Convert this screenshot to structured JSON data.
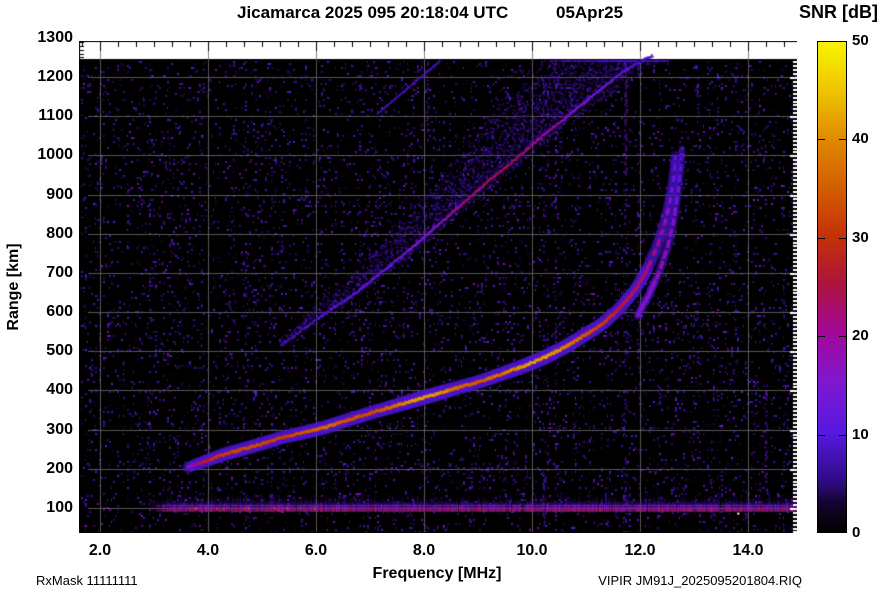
{
  "header": {
    "title": "Jicamarca 2025 095 20:18:04 UTC",
    "date": "05Apr25"
  },
  "footer": {
    "rx_mask": "RxMask 11111111",
    "file_id": "VIPIR  JM91J_2025095201804.RIQ"
  },
  "chart_data": {
    "type": "heatmap",
    "title": "Jicamarca 2025 095 20:18:04 UTC 05Apr25",
    "xlabel": "Frequency [MHz]",
    "ylabel": "Range [km]",
    "colorbar_label": "SNR [dB]",
    "xlim": [
      1.611,
      14.907
    ],
    "ylim": [
      36,
      1292
    ],
    "data_top_km": 1246,
    "snr_range_db": [
      0,
      50
    ],
    "grid": true,
    "grid_color": "#6b6b6b",
    "background_color": "#000000",
    "x_ticks": [
      {
        "v": 2.0,
        "label": "2.0"
      },
      {
        "v": 4.0,
        "label": "4.0"
      },
      {
        "v": 6.0,
        "label": "6.0"
      },
      {
        "v": 8.0,
        "label": "8.0"
      },
      {
        "v": 10.0,
        "label": "10.0"
      },
      {
        "v": 12.0,
        "label": "12.0"
      },
      {
        "v": 14.0,
        "label": "14.0"
      }
    ],
    "y_ticks": [
      {
        "v": 100,
        "label": "100"
      },
      {
        "v": 200,
        "label": "200"
      },
      {
        "v": 300,
        "label": "300"
      },
      {
        "v": 400,
        "label": "400"
      },
      {
        "v": 500,
        "label": "500"
      },
      {
        "v": 600,
        "label": "600"
      },
      {
        "v": 700,
        "label": "700"
      },
      {
        "v": 800,
        "label": "800"
      },
      {
        "v": 900,
        "label": "900"
      },
      {
        "v": 1000,
        "label": "1000"
      },
      {
        "v": 1100,
        "label": "1100"
      },
      {
        "v": 1200,
        "label": "1200"
      },
      {
        "v": 1300,
        "label": "1300"
      }
    ],
    "colorbar_ticks": [
      {
        "v": 0,
        "label": "0"
      },
      {
        "v": 10,
        "label": "10"
      },
      {
        "v": 20,
        "label": "20"
      },
      {
        "v": 30,
        "label": "30"
      },
      {
        "v": 40,
        "label": "40"
      },
      {
        "v": 50,
        "label": "50"
      }
    ],
    "colormap": [
      [
        0.0,
        "#000000"
      ],
      [
        0.06,
        "#16032e"
      ],
      [
        0.1,
        "#2e0a80"
      ],
      [
        0.2,
        "#5518e0"
      ],
      [
        0.3,
        "#7c18d0"
      ],
      [
        0.4,
        "#a008a0"
      ],
      [
        0.5,
        "#ac1242"
      ],
      [
        0.6,
        "#c33008"
      ],
      [
        0.7,
        "#d25c00"
      ],
      [
        0.8,
        "#e08800"
      ],
      [
        0.9,
        "#efc400"
      ],
      [
        1.0,
        "#f8f400"
      ]
    ],
    "series": {
      "f_layer_o_mode": [
        [
          3.62,
          203,
          14
        ],
        [
          3.75,
          210,
          22
        ],
        [
          4.0,
          222,
          30
        ],
        [
          4.3,
          237,
          34
        ],
        [
          4.7,
          252,
          36
        ],
        [
          5.0,
          264,
          36
        ],
        [
          5.4,
          281,
          34
        ],
        [
          5.8,
          293,
          38
        ],
        [
          6.2,
          307,
          40
        ],
        [
          6.6,
          325,
          37
        ],
        [
          7.0,
          342,
          36
        ],
        [
          7.4,
          358,
          40
        ],
        [
          7.8,
          374,
          44
        ],
        [
          8.2,
          390,
          45
        ],
        [
          8.6,
          406,
          40
        ],
        [
          9.0,
          421,
          38
        ],
        [
          9.4,
          440,
          40
        ],
        [
          9.8,
          460,
          44
        ],
        [
          10.2,
          482,
          45
        ],
        [
          10.6,
          510,
          42
        ],
        [
          11.0,
          543,
          38
        ],
        [
          11.3,
          570,
          35
        ],
        [
          11.6,
          606,
          30
        ],
        [
          11.9,
          655,
          26
        ],
        [
          12.1,
          700,
          25
        ],
        [
          12.3,
          760,
          23
        ],
        [
          12.45,
          820,
          21
        ],
        [
          12.55,
          880,
          17
        ],
        [
          12.62,
          940,
          13
        ],
        [
          12.66,
          1000,
          11
        ]
      ],
      "f_layer_x_mode": [
        [
          11.95,
          590,
          16
        ],
        [
          12.15,
          640,
          18
        ],
        [
          12.35,
          700,
          20
        ],
        [
          12.5,
          760,
          20
        ],
        [
          12.62,
          830,
          18
        ],
        [
          12.7,
          900,
          14
        ],
        [
          12.75,
          960,
          11
        ],
        [
          12.78,
          1020,
          9
        ]
      ],
      "second_hop": [
        [
          5.35,
          515,
          7
        ],
        [
          5.8,
          560,
          8
        ],
        [
          6.2,
          600,
          9
        ],
        [
          6.7,
          645,
          11
        ],
        [
          7.2,
          700,
          12
        ],
        [
          7.7,
          755,
          14
        ],
        [
          8.2,
          815,
          16
        ],
        [
          8.7,
          875,
          22
        ],
        [
          9.2,
          935,
          24
        ],
        [
          9.7,
          990,
          24
        ],
        [
          10.2,
          1050,
          21
        ],
        [
          10.7,
          1105,
          17
        ],
        [
          11.2,
          1160,
          14
        ],
        [
          11.6,
          1205,
          11
        ],
        [
          12.0,
          1240,
          9
        ],
        [
          12.25,
          1255,
          8
        ]
      ],
      "third_hop_streak": [
        [
          7.15,
          1110,
          9
        ],
        [
          8.35,
          1250,
          9
        ]
      ],
      "e_layer": {
        "f_start": 2.87,
        "f_end": 14.91,
        "base_km": 100,
        "core_km": [
          88,
          108
        ],
        "spike_max_km": 45,
        "red_line_km": 96
      },
      "white_speck": {
        "f": 13.82,
        "km": 88
      }
    },
    "rfi_columns": [
      {
        "f": 8.05,
        "km": [
          1080,
          1250
        ],
        "db": 9,
        "p": 0.45
      },
      {
        "f": 11.72,
        "km": [
          950,
          1250
        ],
        "db": 11,
        "p": 0.6
      },
      {
        "f": 11.72,
        "km": [
          100,
          950
        ],
        "db": 6,
        "p": 0.22
      },
      {
        "f": 13.05,
        "km": [
          1100,
          1250
        ],
        "db": 8,
        "p": 0.4
      },
      {
        "f": 14.32,
        "km": [
          120,
          420
        ],
        "db": 9,
        "p": 0.5
      },
      {
        "f": 10.2,
        "km": [
          60,
          200
        ],
        "db": 8,
        "p": 0.4
      },
      {
        "f": 12.6,
        "km": [
          60,
          160
        ],
        "db": 8,
        "p": 0.4
      },
      {
        "f": 13.3,
        "km": [
          60,
          190
        ],
        "db": 8,
        "p": 0.4
      },
      {
        "f": 6.4,
        "km": [
          60,
          130
        ],
        "db": 7,
        "p": 0.35
      }
    ],
    "noise": {
      "base_density": 0.085,
      "db_min": 2.5,
      "db_max": 12
    }
  }
}
